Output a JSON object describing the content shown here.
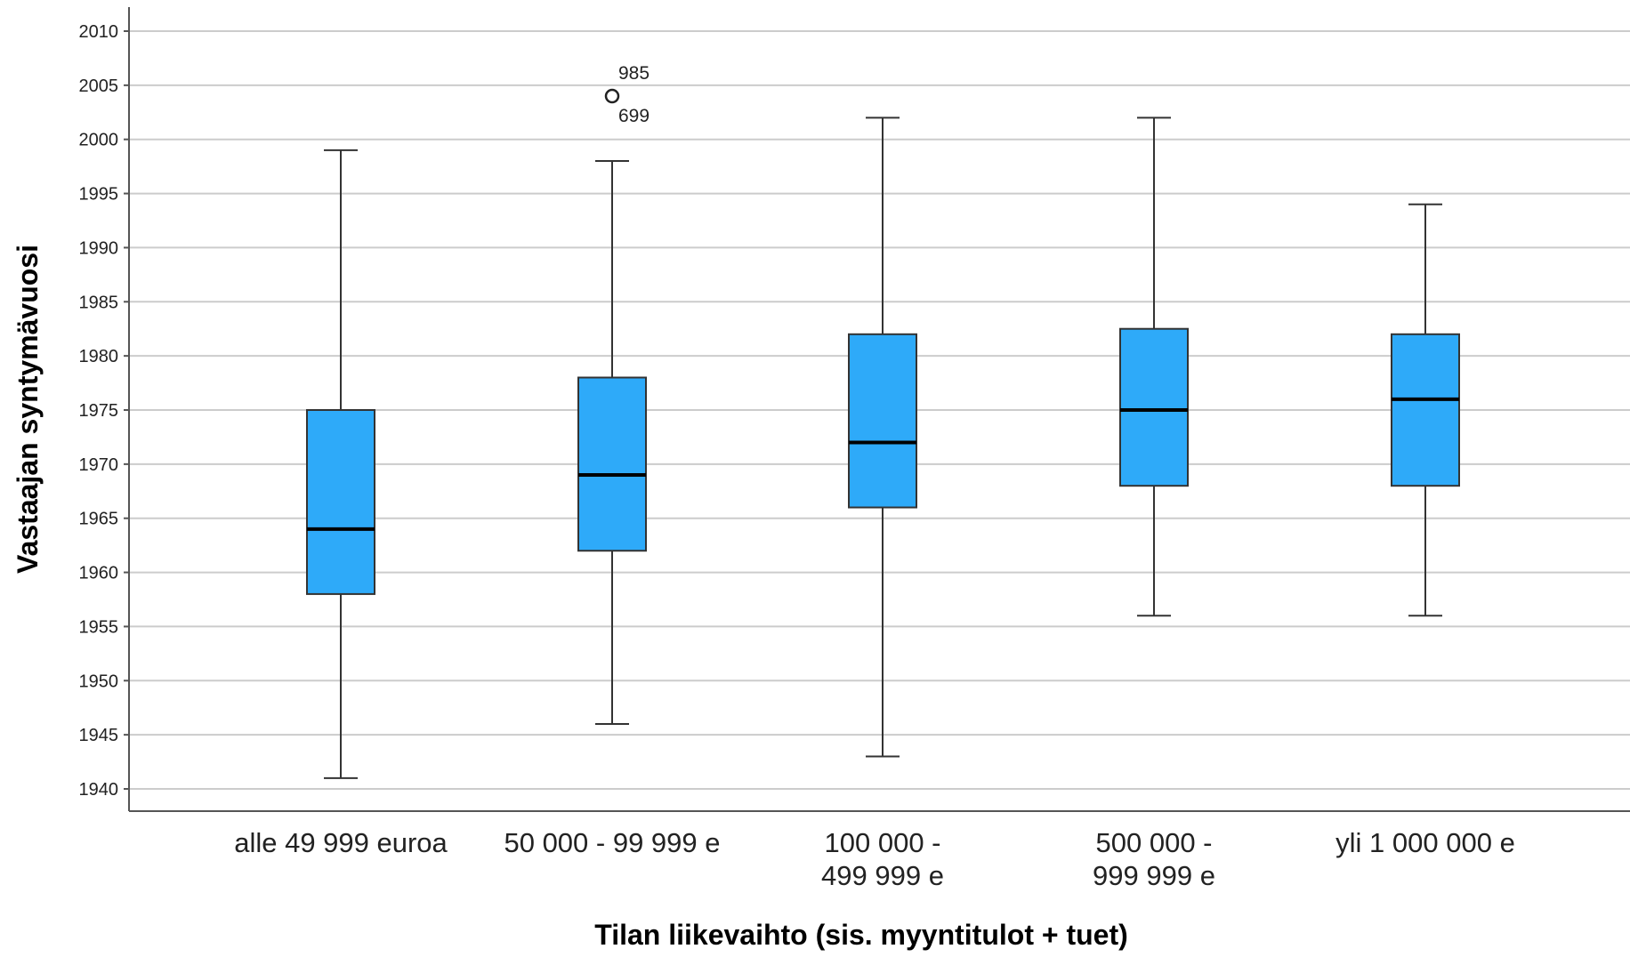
{
  "chart_data": {
    "type": "boxplot",
    "xlabel": "Tilan liikevaihto (sis. myyntitulot + tuet)",
    "ylabel": "Vastaajan syntymävuosi",
    "ylim": [
      1938,
      2012
    ],
    "yticks": [
      1940,
      1945,
      1950,
      1955,
      1960,
      1965,
      1970,
      1975,
      1980,
      1985,
      1990,
      1995,
      2000,
      2005,
      2010
    ],
    "grid": true,
    "box_color": "#2eaaf9",
    "categories": [
      {
        "label_lines": [
          "alle 49 999 euroa"
        ],
        "whisker_low": 1941,
        "q1": 1958,
        "median": 1964,
        "q3": 1975,
        "whisker_high": 1999,
        "outliers": []
      },
      {
        "label_lines": [
          "50 000 - 99 999 e"
        ],
        "whisker_low": 1946,
        "q1": 1962,
        "median": 1969,
        "q3": 1978,
        "whisker_high": 1998,
        "outliers": [
          {
            "value": 2004,
            "labels": [
              "985",
              "699"
            ]
          }
        ]
      },
      {
        "label_lines": [
          "100 000 -",
          "499 999 e"
        ],
        "whisker_low": 1943,
        "q1": 1966,
        "median": 1972,
        "q3": 1982,
        "whisker_high": 2002,
        "outliers": []
      },
      {
        "label_lines": [
          "500 000 -",
          "999 999 e"
        ],
        "whisker_low": 1956,
        "q1": 1968,
        "median": 1975,
        "q3": 1982.5,
        "whisker_high": 2002,
        "outliers": []
      },
      {
        "label_lines": [
          "yli 1 000 000 e"
        ],
        "whisker_low": 1956,
        "q1": 1968,
        "median": 1976,
        "q3": 1982,
        "whisker_high": 1994,
        "outliers": []
      }
    ]
  }
}
